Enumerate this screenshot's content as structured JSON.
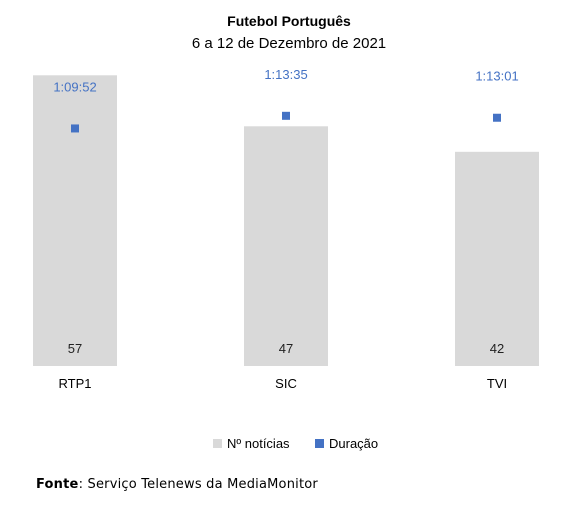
{
  "chart_data": {
    "type": "bar",
    "title": "Futebol Português",
    "subtitle": "6 a 12 de Dezembro de 2021",
    "categories": [
      "RTP1",
      "SIC",
      "TVI"
    ],
    "series": [
      {
        "name": "Nº notícias",
        "kind": "bar",
        "color": "#D9D9D9",
        "values": [
          57,
          47,
          42
        ]
      },
      {
        "name": "Duração",
        "kind": "marker",
        "color": "#4472C4",
        "values": [
          "1:09:52",
          "1:13:35",
          "1:13:01"
        ],
        "seconds": [
          4192,
          4415,
          4381
        ]
      }
    ],
    "ylim_bars": [
      0,
      60
    ],
    "ylim_duration_seconds": [
      0,
      5400
    ],
    "legend_position": "bottom",
    "grid": false
  },
  "source": {
    "label": "Fonte",
    "text": "Serviço Telenews da MediaMonitor"
  }
}
